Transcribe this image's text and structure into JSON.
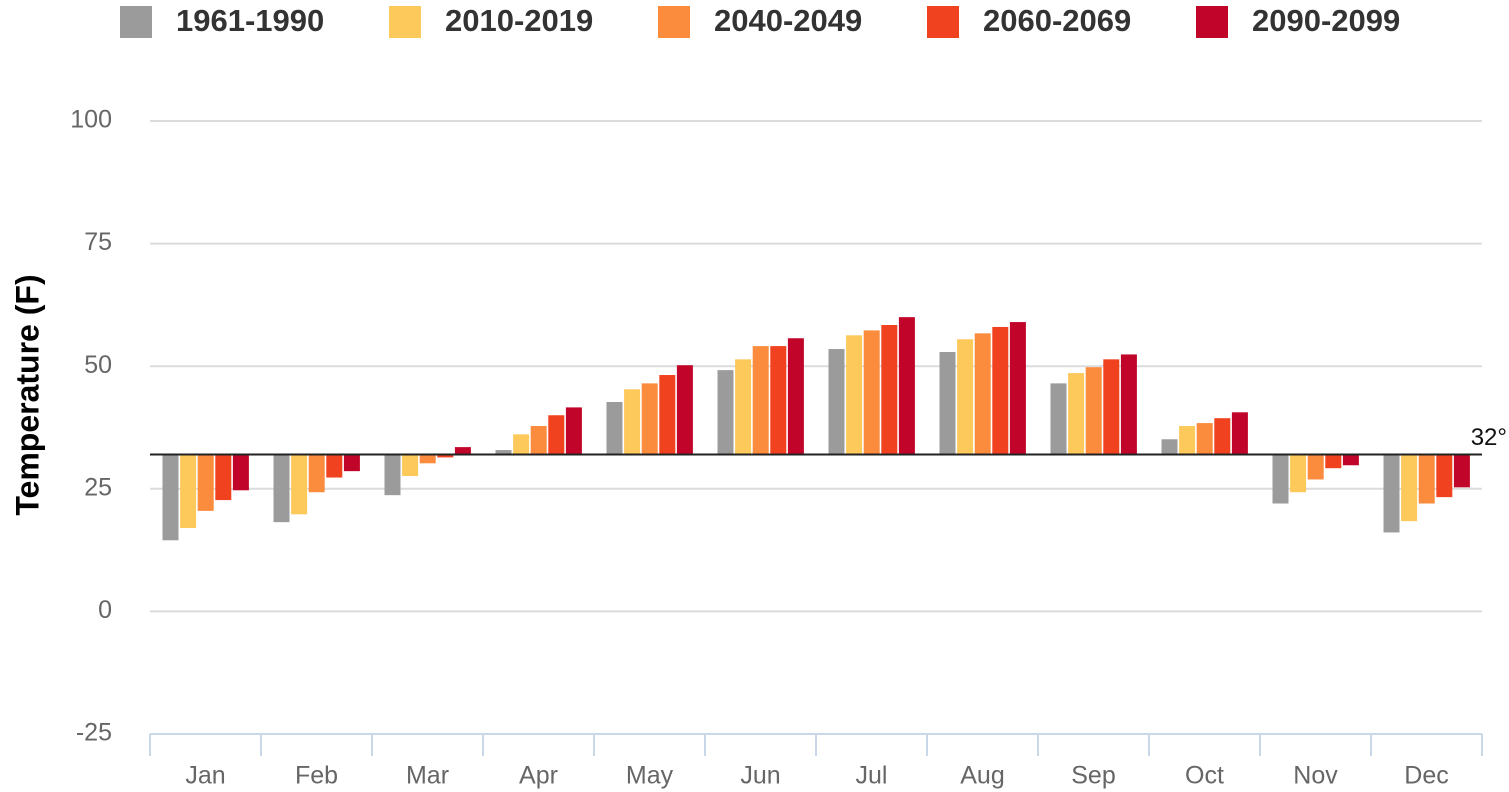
{
  "chart_data": {
    "type": "bar",
    "y_label": "Temperature (F)",
    "categories": [
      "Jan",
      "Feb",
      "Mar",
      "Apr",
      "May",
      "Jun",
      "Jul",
      "Aug",
      "Sep",
      "Oct",
      "Nov",
      "Dec"
    ],
    "series": [
      {
        "name": "1961-1990",
        "color": "#9b9b9b",
        "values": [
          14.5,
          18.2,
          23.7,
          32.9,
          42.7,
          49.2,
          53.5,
          52.9,
          46.5,
          35.1,
          22,
          16.1
        ]
      },
      {
        "name": "2010-2019",
        "color": "#fdc95b",
        "values": [
          17,
          19.8,
          27.6,
          36.1,
          45.3,
          51.4,
          56.3,
          55.5,
          48.6,
          37.8,
          24.3,
          18.4
        ]
      },
      {
        "name": "2040-2049",
        "color": "#fb8b3d",
        "values": [
          20.5,
          24.3,
          30.2,
          37.8,
          46.5,
          54.1,
          57.3,
          56.7,
          49.8,
          38.4,
          26.9,
          22
        ]
      },
      {
        "name": "2060-2069",
        "color": "#f0421f",
        "values": [
          22.7,
          27.3,
          31.4,
          40,
          48.2,
          54.1,
          58.4,
          58,
          51.4,
          39.4,
          29.2,
          23.3
        ]
      },
      {
        "name": "2090-2099",
        "color": "#c1052a",
        "values": [
          24.7,
          28.6,
          33.5,
          41.6,
          50.2,
          55.7,
          60,
          59,
          52.4,
          40.6,
          29.8,
          25.3
        ]
      }
    ],
    "baseline": {
      "value": 32,
      "label": "32°"
    },
    "ylim": [
      -25,
      100
    ],
    "yticks": [
      -25,
      0,
      25,
      50,
      75,
      100
    ],
    "grid": true,
    "legend": "top"
  }
}
